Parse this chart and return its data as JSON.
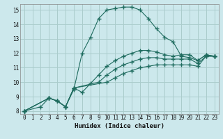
{
  "xlabel": "Humidex (Indice chaleur)",
  "ylabel": "",
  "xlim": [
    -0.5,
    23.5
  ],
  "ylim": [
    7.8,
    15.4
  ],
  "xticks": [
    0,
    1,
    2,
    3,
    4,
    5,
    6,
    7,
    8,
    9,
    10,
    11,
    12,
    13,
    14,
    15,
    16,
    17,
    18,
    19,
    20,
    21,
    22,
    23
  ],
  "yticks": [
    8,
    9,
    10,
    11,
    12,
    13,
    14,
    15
  ],
  "bg_color": "#cce8ec",
  "grid_color": "#aacccc",
  "line_color": "#1e6b5e",
  "lines": [
    {
      "x": [
        0,
        2,
        3,
        4,
        5,
        6,
        7,
        8,
        9,
        10,
        11,
        12,
        13,
        14,
        15,
        16,
        17,
        18,
        19,
        20,
        21,
        22,
        23
      ],
      "y": [
        8.0,
        8.3,
        8.9,
        8.7,
        8.3,
        9.5,
        12.0,
        13.1,
        14.4,
        15.0,
        15.1,
        15.2,
        15.2,
        15.0,
        14.4,
        13.7,
        13.1,
        12.8,
        11.8,
        11.7,
        11.5,
        11.9,
        11.8
      ]
    },
    {
      "x": [
        0,
        3,
        4,
        5,
        6,
        7,
        8,
        9,
        10,
        11,
        12,
        13,
        14,
        15,
        16,
        17,
        18,
        19,
        20,
        21,
        22,
        23
      ],
      "y": [
        8.0,
        8.9,
        8.7,
        8.3,
        9.6,
        9.3,
        9.9,
        10.5,
        11.1,
        11.5,
        11.8,
        12.0,
        12.2,
        12.2,
        12.1,
        11.9,
        11.8,
        11.9,
        11.9,
        11.5,
        11.9,
        11.8
      ]
    },
    {
      "x": [
        0,
        3,
        4,
        5,
        6,
        9,
        10,
        11,
        12,
        13,
        14,
        15,
        16,
        17,
        18,
        19,
        20,
        21,
        22,
        23
      ],
      "y": [
        8.0,
        8.9,
        8.7,
        8.3,
        9.6,
        10.0,
        10.5,
        10.9,
        11.2,
        11.4,
        11.6,
        11.7,
        11.7,
        11.6,
        11.6,
        11.6,
        11.6,
        11.3,
        11.8,
        11.8
      ]
    },
    {
      "x": [
        0,
        3,
        4,
        5,
        6,
        10,
        11,
        12,
        13,
        14,
        15,
        16,
        17,
        18,
        19,
        20,
        21,
        22,
        23
      ],
      "y": [
        8.0,
        8.9,
        8.7,
        8.3,
        9.6,
        10.0,
        10.3,
        10.6,
        10.8,
        11.0,
        11.1,
        11.2,
        11.2,
        11.2,
        11.2,
        11.2,
        11.1,
        11.8,
        11.8
      ]
    }
  ]
}
